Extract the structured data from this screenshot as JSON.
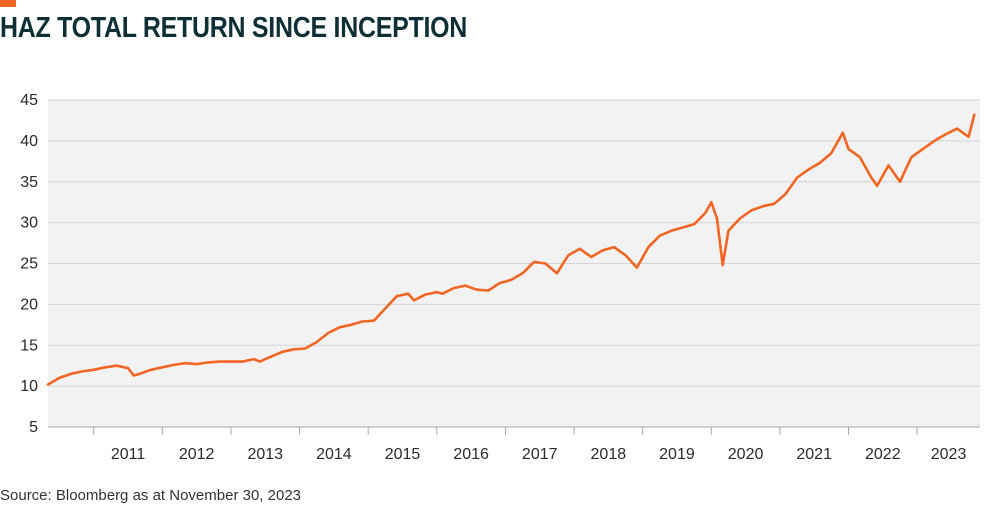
{
  "title": "HAZ TOTAL RETURN SINCE INCEPTION",
  "source": "Source: Bloomberg as at November 30, 2023",
  "colors": {
    "accent": "#f26522",
    "line": "#f26522",
    "title": "#0d2f35",
    "plot_background": "#f2f2f2",
    "grid": "#d4d4d4"
  },
  "chart_data": {
    "type": "line",
    "title": "HAZ TOTAL RETURN SINCE INCEPTION",
    "xlabel": "",
    "ylabel": "",
    "ylim": [
      5,
      45
    ],
    "xlim": [
      "2010-05",
      "2023-12"
    ],
    "yticks": [
      5,
      10,
      15,
      20,
      25,
      30,
      35,
      40,
      45
    ],
    "xtick_labels": [
      "2011",
      "2012",
      "2013",
      "2014",
      "2015",
      "2016",
      "2017",
      "2018",
      "2019",
      "2020",
      "2021",
      "2022",
      "2023"
    ],
    "grid": true,
    "legend": "none",
    "series": [
      {
        "x": [
          "2010-05",
          "2010-07",
          "2010-09",
          "2010-11",
          "2011-01",
          "2011-03",
          "2011-05",
          "2011-07",
          "2011-08",
          "2011-09",
          "2011-11",
          "2012-01",
          "2012-03",
          "2012-05",
          "2012-07",
          "2012-09",
          "2012-11",
          "2013-01",
          "2013-03",
          "2013-05",
          "2013-06",
          "2013-08",
          "2013-10",
          "2013-12",
          "2014-02",
          "2014-04",
          "2014-06",
          "2014-08",
          "2014-10",
          "2014-12",
          "2015-02",
          "2015-04",
          "2015-06",
          "2015-08",
          "2015-09",
          "2015-11",
          "2016-01",
          "2016-02",
          "2016-04",
          "2016-06",
          "2016-08",
          "2016-10",
          "2016-12",
          "2017-02",
          "2017-04",
          "2017-06",
          "2017-08",
          "2017-10",
          "2017-12",
          "2018-02",
          "2018-04",
          "2018-06",
          "2018-08",
          "2018-10",
          "2018-12",
          "2019-02",
          "2019-04",
          "2019-06",
          "2019-08",
          "2019-10",
          "2019-12",
          "2020-01",
          "2020-02",
          "2020-03",
          "2020-04",
          "2020-06",
          "2020-08",
          "2020-10",
          "2020-12",
          "2021-02",
          "2021-04",
          "2021-06",
          "2021-08",
          "2021-10",
          "2021-12",
          "2022-01",
          "2022-03",
          "2022-05",
          "2022-06",
          "2022-08",
          "2022-10",
          "2022-12",
          "2023-02",
          "2023-04",
          "2023-06",
          "2023-08",
          "2023-10",
          "2023-11"
        ],
        "values": [
          10.2,
          11.0,
          11.5,
          11.8,
          12.0,
          12.3,
          12.5,
          12.2,
          11.3,
          11.5,
          12.0,
          12.3,
          12.6,
          12.8,
          12.7,
          12.9,
          13.0,
          13.0,
          13.0,
          13.3,
          13.0,
          13.6,
          14.2,
          14.5,
          14.6,
          15.4,
          16.5,
          17.2,
          17.5,
          17.9,
          18.0,
          19.5,
          21.0,
          21.3,
          20.5,
          21.2,
          21.5,
          21.3,
          22.0,
          22.3,
          21.8,
          21.7,
          22.6,
          23.0,
          23.8,
          25.2,
          25.0,
          23.8,
          26.0,
          26.8,
          25.8,
          26.6,
          27.0,
          26.0,
          24.5,
          27.0,
          28.4,
          29.0,
          29.4,
          29.8,
          31.2,
          32.5,
          30.5,
          24.8,
          29.0,
          30.5,
          31.5,
          32.0,
          32.3,
          33.5,
          35.5,
          36.5,
          37.3,
          38.5,
          41.0,
          39.0,
          38.0,
          35.5,
          34.5,
          37.0,
          35.0,
          38.0,
          39.0,
          40.0,
          40.8,
          41.5,
          40.5,
          43.2
        ]
      }
    ]
  }
}
